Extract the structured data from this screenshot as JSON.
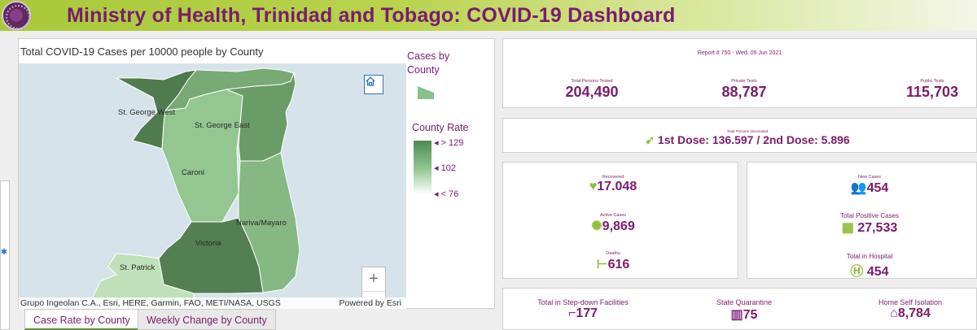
{
  "header": {
    "title": "Ministry of Health, Trinidad and Tobago: COVID-19 Dashboard",
    "logo_icon": "coronavirus-logo-icon"
  },
  "map": {
    "title": "Total COVID-19 Cases per 10000 people by County",
    "attribution": "Grupo Ingeolan C.A., Esri, HERE, Garmin, FAO, METI/NASA, USGS",
    "powered": "Powered by Esri",
    "zoom_in": "+",
    "zoom_out": "—",
    "county_labels": {
      "st_george_west": "St. George West",
      "st_george_east": "St. George East",
      "caroni": "Caroni",
      "nariva_mayaro": "Nariva/Mayaro",
      "victoria": "Victoria",
      "st_patrick": "St. Patrick"
    }
  },
  "legend": {
    "title": "Cases by County",
    "subtitle": "County Rate",
    "high": "> 129",
    "mid": "102",
    "low": "< 76"
  },
  "tabs": [
    {
      "label": "Case Rate by County"
    },
    {
      "label": "Weekly Change by County"
    }
  ],
  "stats": {
    "report": "Report # 750 - Wed, 09 Jun 2021",
    "tested": {
      "label": "Total Persons Tested",
      "value": "204,490"
    },
    "private": {
      "label": "Private Tests",
      "value": "88,787"
    },
    "public": {
      "label": "Public Tests",
      "value": "115,703"
    },
    "vaccinated": {
      "label": "Total Persons Vaccinated",
      "value": "1st Dose: 136.597 / 2nd Dose: 5.896"
    },
    "recovered": {
      "label": "Recovered",
      "value": "17.048"
    },
    "active": {
      "label": "Active Cases",
      "value": "9,869"
    },
    "deaths": {
      "label": "Deaths",
      "value": "616"
    },
    "new_cases": {
      "label": "New Cases",
      "value": "454"
    },
    "total_positive": {
      "label": "Total Positive Cases",
      "value": "27,533"
    },
    "hospital": {
      "label": "Total in Hospital",
      "value": "454"
    },
    "stepdown": {
      "label": "Total in Step-down Facilities",
      "value": "177"
    },
    "quarantine": {
      "label": "State Quarantine",
      "value": "75"
    },
    "home": {
      "label": "Home Self Isolation",
      "value": "8,784"
    }
  },
  "colors": {
    "accent": "#7a1c6e",
    "icon_green": "#8fbf3a",
    "header_green": "#a8c93a"
  }
}
